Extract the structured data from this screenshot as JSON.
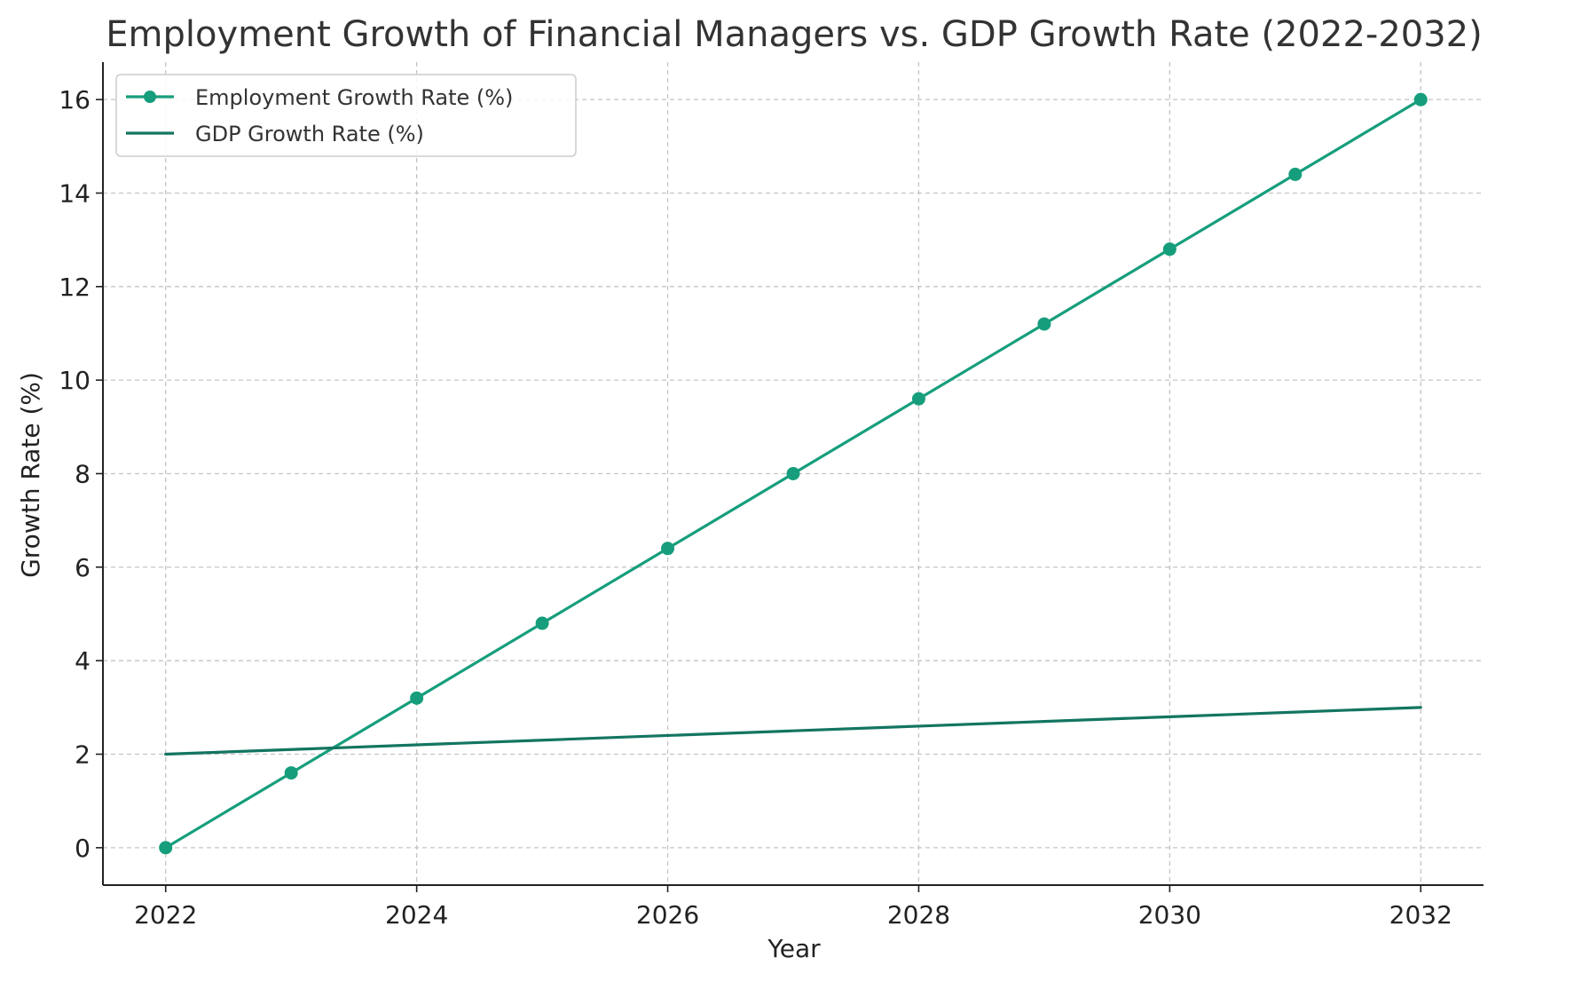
{
  "chart_data": {
    "type": "line",
    "title": "Employment Growth of Financial Managers vs. GDP Growth Rate (2022-2032)",
    "xlabel": "Year",
    "ylabel": "Growth Rate (%)",
    "x": [
      2022,
      2023,
      2024,
      2025,
      2026,
      2027,
      2028,
      2029,
      2030,
      2031,
      2032
    ],
    "xlim": [
      2021.5,
      2032.5
    ],
    "ylim": [
      -0.8,
      16.8
    ],
    "xticks": [
      2022,
      2024,
      2026,
      2028,
      2030,
      2032
    ],
    "yticks": [
      0,
      2,
      4,
      6,
      8,
      10,
      12,
      14,
      16
    ],
    "grid": true,
    "legend_position": "top-left",
    "series": [
      {
        "name": "Employment Growth Rate (%)",
        "values": [
          0,
          1.6,
          3.2,
          4.8,
          6.4,
          8.0,
          9.6,
          11.2,
          12.8,
          14.4,
          16.0
        ],
        "color": "#169e7c",
        "markers": true
      },
      {
        "name": "GDP Growth Rate (%)",
        "values": [
          2.0,
          2.1,
          2.2,
          2.3,
          2.4,
          2.5,
          2.6,
          2.7,
          2.8,
          2.9,
          3.0
        ],
        "color": "#137560",
        "markers": false
      }
    ]
  }
}
